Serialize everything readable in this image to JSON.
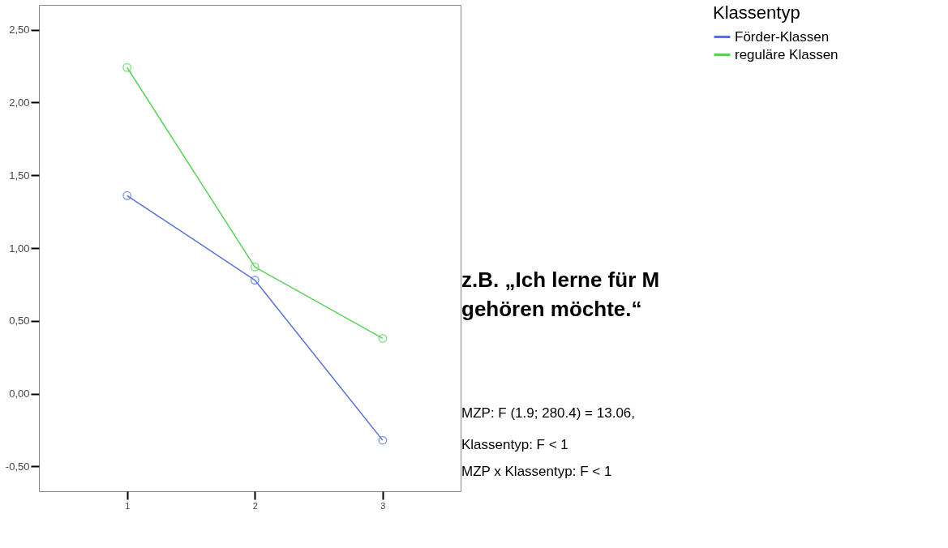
{
  "chart_data": {
    "type": "line",
    "x": [
      1,
      2,
      3
    ],
    "xlim": [
      0.31,
      3.61
    ],
    "xticks": [
      1,
      2,
      3
    ],
    "ylim": [
      -0.67,
      2.67
    ],
    "yticks": [
      {
        "value": 2.5,
        "label": "2,50"
      },
      {
        "value": 2.0,
        "label": "2,00"
      },
      {
        "value": 1.5,
        "label": "1,50"
      },
      {
        "value": 1.0,
        "label": "1,00"
      },
      {
        "value": 0.5,
        "label": "0,50"
      },
      {
        "value": 0.0,
        "label": "0,00"
      },
      {
        "value": -0.5,
        "label": "-0,50"
      }
    ],
    "legend_title": "Klassentyp",
    "series": [
      {
        "name": "Förder-Klassen",
        "color": "#5a73d2",
        "values": [
          1.36,
          0.78,
          -0.32
        ]
      },
      {
        "name": "reguläre Klassen",
        "color": "#5ad25a",
        "values": [
          2.24,
          0.87,
          0.38
        ]
      }
    ],
    "marker": "circle",
    "line_style": "solid",
    "grid": false,
    "legend": "right",
    "annotations": [
      "z.B. „Ich lerne für M",
      "gehören möchte.“",
      "MZP: F (1.9; 280.4) = 13.06,",
      "Klassentyp: F < 1",
      "MZP x Klassentyp: F < 1"
    ]
  }
}
